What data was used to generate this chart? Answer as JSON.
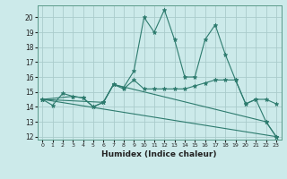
{
  "xlabel": "Humidex (Indice chaleur)",
  "bg_color": "#cceaea",
  "grid_color": "#aacccc",
  "line_color": "#2d7b6e",
  "xlim": [
    -0.5,
    23.5
  ],
  "ylim": [
    11.8,
    20.8
  ],
  "yticks": [
    12,
    13,
    14,
    15,
    16,
    17,
    18,
    19,
    20
  ],
  "xticks": [
    0,
    1,
    2,
    3,
    4,
    5,
    6,
    7,
    8,
    9,
    10,
    11,
    12,
    13,
    14,
    15,
    16,
    17,
    18,
    19,
    20,
    21,
    22,
    23
  ],
  "series": [
    {
      "x": [
        0,
        1,
        2,
        3,
        4,
        5,
        6,
        7,
        8,
        9,
        10,
        11,
        12,
        13,
        14,
        15,
        16,
        17,
        18,
        19,
        20,
        21,
        22,
        23
      ],
      "y": [
        14.5,
        14.1,
        14.9,
        14.7,
        14.6,
        14.0,
        14.3,
        15.5,
        15.3,
        16.4,
        20.0,
        19.0,
        20.5,
        18.5,
        16.0,
        16.0,
        18.5,
        19.5,
        17.5,
        15.8,
        14.2,
        14.5,
        13.0,
        12.0
      ]
    },
    {
      "x": [
        0,
        3,
        4,
        5,
        6,
        7,
        22,
        23
      ],
      "y": [
        14.5,
        14.7,
        14.6,
        14.0,
        14.3,
        15.5,
        13.0,
        12.0
      ]
    },
    {
      "x": [
        0,
        23
      ],
      "y": [
        14.5,
        12.0
      ]
    },
    {
      "x": [
        0,
        6,
        7,
        8,
        9,
        10,
        11,
        12,
        13,
        14,
        15,
        16,
        17,
        18,
        19,
        20,
        21,
        22,
        23
      ],
      "y": [
        14.5,
        14.3,
        15.5,
        15.2,
        15.8,
        15.2,
        15.2,
        15.2,
        15.2,
        15.2,
        15.4,
        15.6,
        15.8,
        15.8,
        15.8,
        14.2,
        14.5,
        14.5,
        14.2
      ]
    }
  ]
}
